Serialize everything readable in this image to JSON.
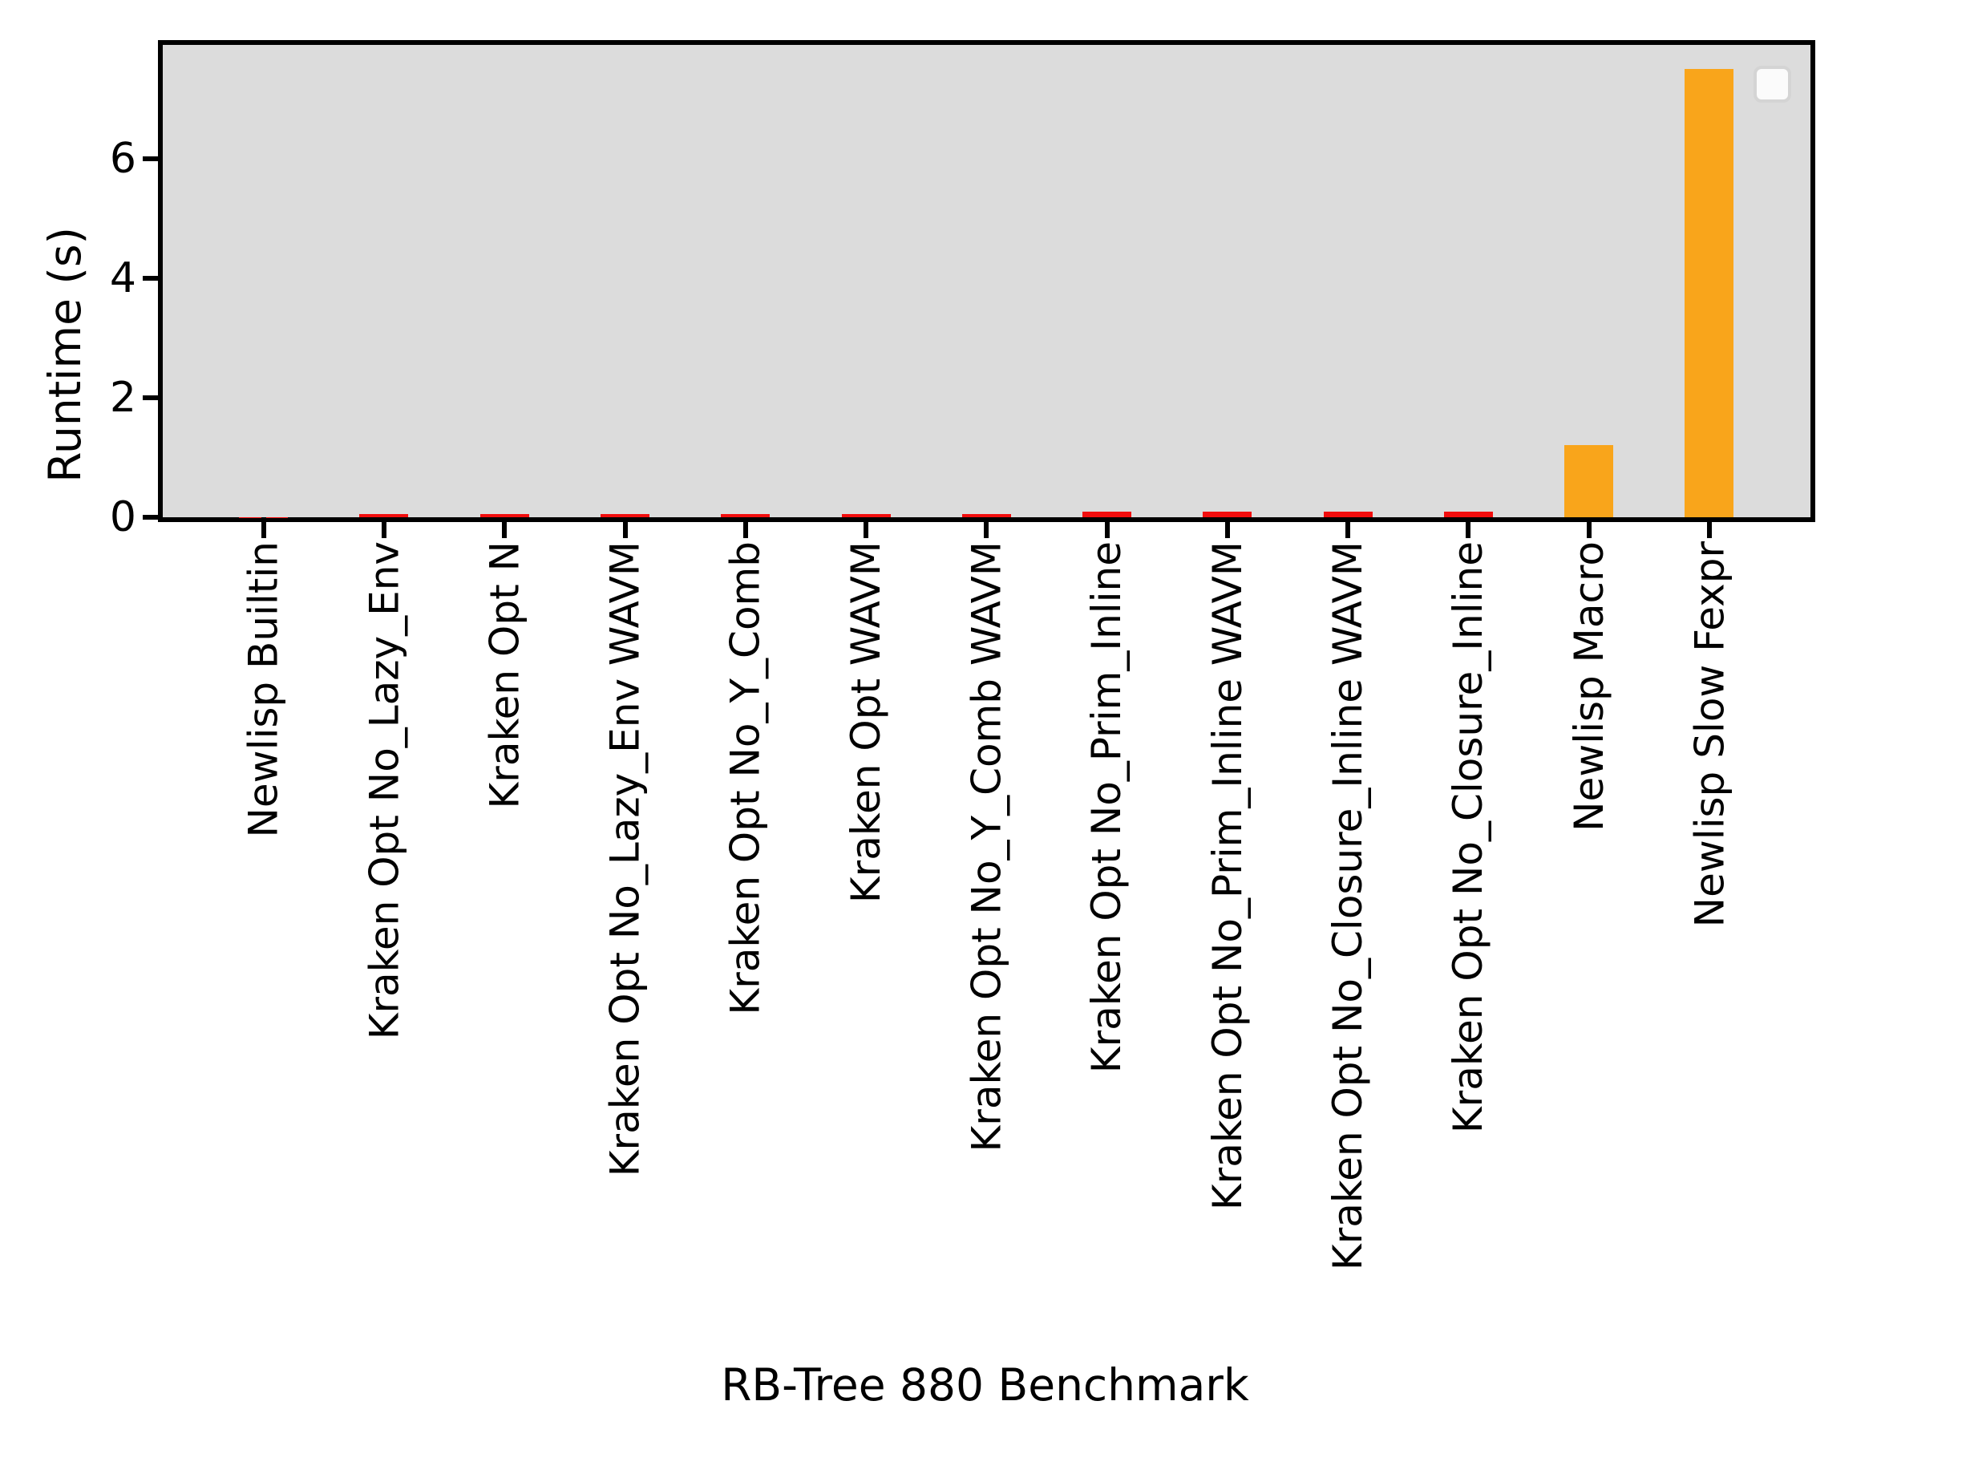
{
  "chart_data": {
    "type": "bar",
    "title": "",
    "xlabel": "RB-Tree 880 Benchmark",
    "ylabel": "Runtime (s)",
    "categories": [
      "Newlisp Builtin",
      "Kraken Opt No_Lazy_Env",
      "Kraken Opt N",
      "Kraken Opt No_Lazy_Env WAVM",
      "Kraken Opt No_Y_Comb",
      "Kraken Opt WAVM",
      "Kraken Opt No_Y_Comb WAVM",
      "Kraken Opt No_Prim_Inline",
      "Kraken Opt No_Prim_Inline WAVM",
      "Kraken Opt No_Closure_Inline WAVM",
      "Kraken Opt No_Closure_Inline",
      "Newlisp Macro",
      "Newlisp Slow Fexpr"
    ],
    "values": [
      0.005,
      0.06,
      0.06,
      0.06,
      0.06,
      0.06,
      0.06,
      0.09,
      0.1,
      0.1,
      0.1,
      1.21,
      7.5
    ],
    "bar_colors": [
      "#f20d0d",
      "#f20d0d",
      "#f20d0d",
      "#f20d0d",
      "#f20d0d",
      "#f20d0d",
      "#f20d0d",
      "#f20d0d",
      "#f20d0d",
      "#f20d0d",
      "#f20d0d",
      "#f9a51b",
      "#f9a51b"
    ],
    "yticks": [
      "0",
      "2",
      "4",
      "6"
    ],
    "ylim": [
      0,
      7.9
    ],
    "grid": false,
    "legend": {
      "visible": true,
      "entries": [],
      "position": "upper right"
    },
    "colors": {
      "plot_background": "#dcdcdc",
      "figure_background": "#ffffff",
      "spine": "#000000",
      "red_bar": "#f20d0d",
      "orange_bar": "#f9a51b",
      "legend_border": "#d4d4d4",
      "legend_fill": "#fbfbfb"
    }
  }
}
